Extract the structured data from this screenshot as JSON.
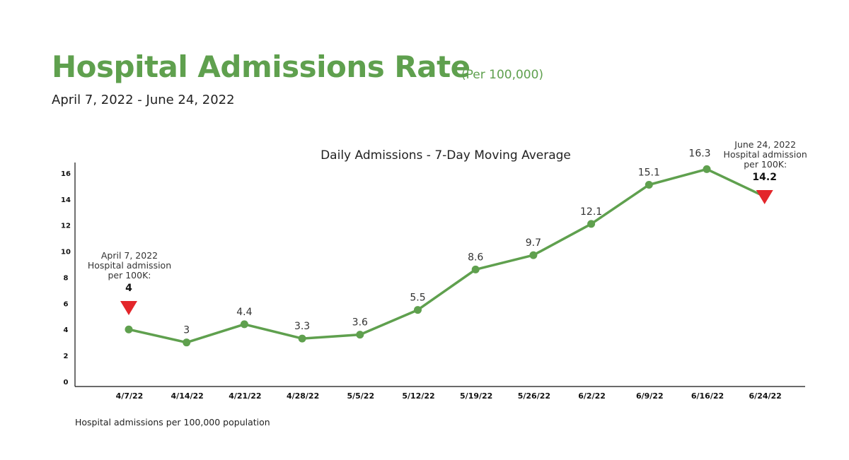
{
  "header": {
    "title": "Hospital Admissions Rate",
    "unit": "(Per 100,000)",
    "date_range": "April 7, 2022 - June 24, 2022"
  },
  "chart_data": {
    "type": "line",
    "title": "Daily Admissions - 7-Day Moving Average",
    "categories": [
      "4/7/22",
      "4/14/22",
      "4/21/22",
      "4/28/22",
      "5/5/22",
      "5/12/22",
      "5/19/22",
      "5/26/22",
      "6/2/22",
      "6/9/22",
      "6/16/22",
      "6/24/22"
    ],
    "values": [
      4,
      3,
      4.4,
      3.3,
      3.6,
      5.5,
      8.6,
      9.7,
      12.1,
      15.1,
      16.3,
      14.2
    ],
    "data_labels": [
      "",
      "3",
      "4.4",
      "3.3",
      "3.6",
      "5.5",
      "8.6",
      "9.7",
      "12.1",
      "15.1",
      "16.3",
      ""
    ],
    "y_ticks": [
      0,
      2,
      4,
      6,
      8,
      10,
      12,
      14,
      16
    ],
    "ylim": [
      0,
      17
    ],
    "xlabel": "",
    "ylabel": "",
    "grid": false,
    "colors": {
      "line": "#5fa04e",
      "marker": "#5fa04e",
      "annotation_marker": "#e3262b"
    },
    "annotations": [
      {
        "index": 0,
        "lines": [
          "April 7, 2022",
          "Hospital admission",
          "per 100K:"
        ],
        "value": "4"
      },
      {
        "index": 11,
        "lines": [
          "June 24, 2022",
          "Hospital admission",
          "per 100K:"
        ],
        "value": "14.2"
      }
    ],
    "footnote": "Hospital admissions per 100,000 population"
  }
}
